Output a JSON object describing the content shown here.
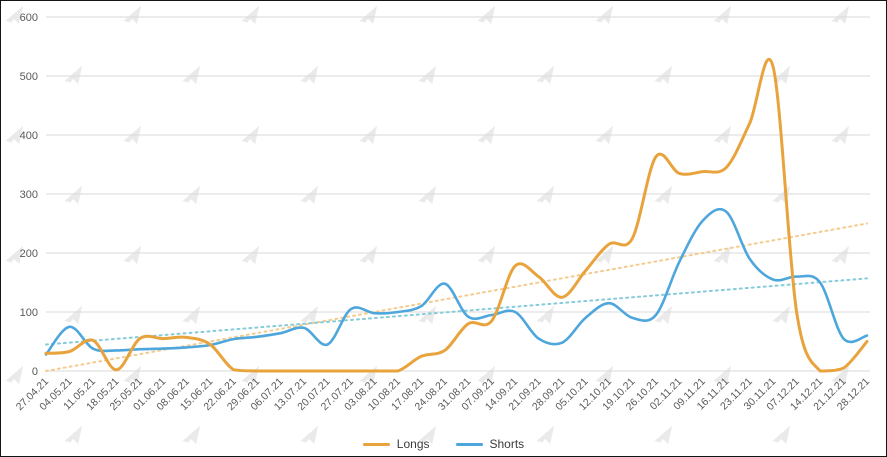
{
  "chart_data": {
    "type": "line",
    "title": "",
    "x": [
      "27.04.21",
      "04.05.21",
      "11.05.21",
      "18.05.21",
      "25.05.21",
      "01.06.21",
      "08.06.21",
      "15.06.21",
      "22.06.21",
      "29.06.21",
      "06.07.21",
      "13.07.21",
      "20.07.21",
      "27.07.21",
      "03.08.21",
      "10.08.21",
      "17.08.21",
      "24.08.21",
      "31.08.21",
      "07.09.21",
      "14.09.21",
      "21.09.21",
      "28.09.21",
      "05.10.21",
      "12.10.21",
      "19.10.21",
      "26.10.21",
      "02.11.21",
      "09.11.21",
      "16.11.21",
      "23.11.21",
      "30.11.21",
      "07.12.21",
      "14.12.21",
      "21.12.21",
      "28.12.21"
    ],
    "series": [
      {
        "name": "Longs",
        "color": "#E8A33D",
        "values": [
          30,
          33,
          52,
          2,
          55,
          55,
          57,
          45,
          2,
          0,
          0,
          0,
          0,
          0,
          0,
          0,
          25,
          35,
          80,
          85,
          178,
          160,
          125,
          170,
          215,
          225,
          363,
          335,
          338,
          345,
          420,
          515,
          100,
          0,
          5,
          50
        ]
      },
      {
        "name": "Shorts",
        "color": "#4DA6DC",
        "values": [
          28,
          75,
          38,
          35,
          37,
          38,
          40,
          44,
          54,
          58,
          64,
          73,
          45,
          105,
          98,
          100,
          110,
          148,
          92,
          95,
          100,
          55,
          48,
          90,
          115,
          90,
          95,
          185,
          255,
          270,
          190,
          155,
          160,
          150,
          55,
          60
        ]
      }
    ],
    "trendlines": [
      {
        "series": "Longs",
        "color": "#F4CB8E",
        "style": "dotted",
        "start": 0,
        "end": 250
      },
      {
        "series": "Shorts",
        "color": "#85CBD9",
        "style": "dotted",
        "start": 45,
        "end": 157
      }
    ],
    "ylim": [
      0,
      600
    ],
    "yticks": [
      0,
      100,
      200,
      300,
      400,
      500,
      600
    ],
    "grid": "horizontal",
    "gridline_color": "#d9d9d9",
    "axis_label_color": "#595959",
    "legend_position": "bottom"
  },
  "watermark": {
    "icon": "forklog-logo",
    "color": "#EAEAEA"
  }
}
